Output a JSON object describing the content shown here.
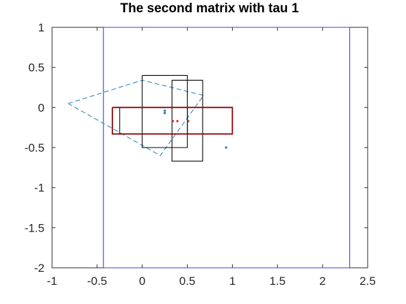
{
  "chart_data": {
    "type": "line",
    "title": "The second matrix with tau 1",
    "xlabel": "",
    "ylabel": "",
    "xlim": [
      -1,
      2.5
    ],
    "ylim": [
      -2,
      1
    ],
    "xticks": [
      -1,
      -0.5,
      0,
      0.5,
      1,
      1.5,
      2,
      2.5
    ],
    "xtick_labels": [
      "-1",
      "-0.5",
      "0",
      "0.5",
      "1",
      "1.5",
      "2",
      "2.5"
    ],
    "yticks": [
      1,
      0.5,
      0,
      -0.5,
      -1,
      -1.5,
      -2
    ],
    "ytick_labels": [
      "1",
      "0.5",
      "0",
      "-0.5",
      "-1",
      "-1.5",
      "-2"
    ],
    "grid": false,
    "legend": "none",
    "series": [
      {
        "style": "solid",
        "color": "#3b3bd6",
        "x": [
          -0.43,
          2.3,
          2.3,
          -0.43,
          -0.43
        ],
        "y": [
          1,
          1,
          -2,
          -2,
          1
        ]
      },
      {
        "style": "dashed",
        "color": "#2f86c2",
        "x": [
          -0.82,
          0,
          0.68,
          0.2,
          -0.82
        ],
        "y": [
          0.05,
          0.34,
          0.15,
          -0.6,
          0.05
        ]
      },
      {
        "style": "solid",
        "color": "#000000",
        "x": [
          0,
          0.5,
          0.5,
          0,
          0
        ],
        "y": [
          0.4,
          0.4,
          -0.5,
          -0.5,
          0.4
        ]
      },
      {
        "style": "solid",
        "color": "#000000",
        "x": [
          0.33,
          0.67,
          0.67,
          0.33,
          0.33
        ],
        "y": [
          0.34,
          0.34,
          -0.67,
          -0.67,
          0.34
        ]
      },
      {
        "style": "solid",
        "color": "#000000",
        "x": [
          -0.25,
          0.5,
          0.5,
          -0.25,
          -0.25
        ],
        "y": [
          0,
          0,
          -0.33,
          -0.33,
          0
        ]
      },
      {
        "style": "solid",
        "color": "#8b0000",
        "x": [
          -0.33,
          1,
          1,
          -0.33,
          -0.33
        ],
        "y": [
          0,
          0,
          -0.33,
          -0.33,
          0
        ]
      }
    ],
    "points": [
      {
        "color": "#1f77b4",
        "x": 0.25,
        "y": -0.04
      },
      {
        "color": "#1f77b4",
        "x": 0.25,
        "y": -0.07
      },
      {
        "color": "#1f77b4",
        "x": 0.93,
        "y": -0.5
      },
      {
        "color": "#d62728",
        "x": 0.34,
        "y": -0.17
      },
      {
        "color": "#d62728",
        "x": 0.39,
        "y": -0.17
      },
      {
        "color": "#8b4513",
        "x": 0.51,
        "y": -0.17
      }
    ]
  }
}
